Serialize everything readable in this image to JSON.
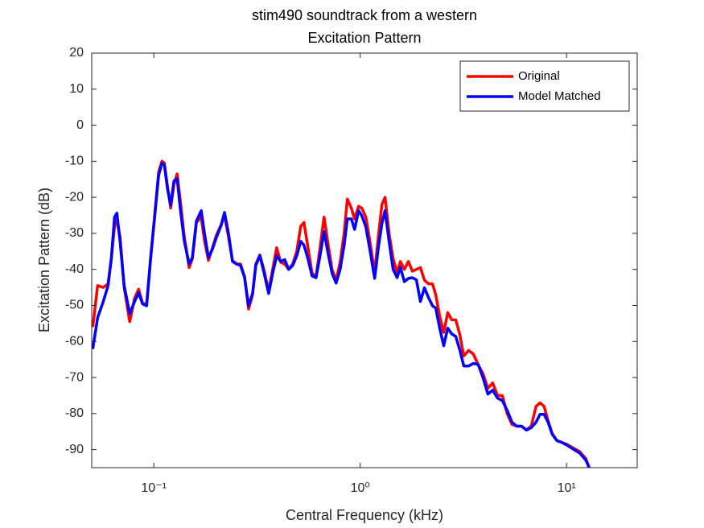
{
  "chart_data": {
    "type": "line",
    "title": [
      "stim490 soundtrack from a western",
      "Excitation Pattern"
    ],
    "x_label": "Central Frequency (kHz)",
    "y_label": "Excitation Pattern (dB)",
    "x_scale": "log",
    "xlim": [
      0.05,
      22
    ],
    "xticks": [
      {
        "value": 0.1,
        "label": "10⁻¹"
      },
      {
        "value": 1,
        "label": "10⁰"
      },
      {
        "value": 10,
        "label": "10¹"
      }
    ],
    "ylim": [
      -95,
      20
    ],
    "yticks": [
      -90,
      -80,
      -70,
      -60,
      -50,
      -40,
      -30,
      -20,
      -10,
      0,
      10,
      20
    ],
    "grid": false,
    "legend": "upper right",
    "x": [
      0.0506,
      0.0534,
      0.0569,
      0.06,
      0.0622,
      0.0645,
      0.0662,
      0.0686,
      0.0718,
      0.0764,
      0.0807,
      0.0844,
      0.0882,
      0.0923,
      0.0965,
      0.1009,
      0.1055,
      0.1094,
      0.1124,
      0.1165,
      0.1207,
      0.1251,
      0.1297,
      0.1344,
      0.1405,
      0.1483,
      0.1537,
      0.1608,
      0.1697,
      0.1759,
      0.1839,
      0.1923,
      0.2011,
      0.2122,
      0.22,
      0.23,
      0.2405,
      0.2516,
      0.2631,
      0.2751,
      0.2877,
      0.3009,
      0.312,
      0.3263,
      0.3412,
      0.3601,
      0.3765,
      0.3938,
      0.4118,
      0.4306,
      0.4503,
      0.471,
      0.4927,
      0.5152,
      0.5341,
      0.5585,
      0.5841,
      0.6109,
      0.6389,
      0.6681,
      0.6988,
      0.7307,
      0.7643,
      0.7993,
      0.8359,
      0.8663,
      0.9062,
      0.9393,
      0.982,
      1.018,
      1.065,
      1.113,
      1.175,
      1.229,
      1.274,
      1.32,
      1.38,
      1.444,
      1.51,
      1.565,
      1.637,
      1.712,
      1.79,
      1.872,
      1.958,
      2.048,
      2.142,
      2.24,
      2.322,
      2.428,
      2.539,
      2.656,
      2.777,
      2.904,
      3.037,
      3.176,
      3.352,
      3.537,
      3.733,
      3.939,
      4.157,
      4.385,
      4.628,
      4.884,
      5.153,
      5.438,
      5.738,
      6.055,
      6.389,
      6.743,
      7.114,
      7.44,
      7.783,
      8.138,
      8.511,
      8.98,
      9.478,
      10.0,
      10.74,
      11.54,
      12.4,
      12.86
    ],
    "series": [
      {
        "name": "Original",
        "color": "#ff0000",
        "values": [
          -56,
          -44.5,
          -45,
          -44,
          -37,
          -28,
          -26.5,
          -31,
          -45,
          -54.5,
          -48,
          -45.5,
          -49.5,
          -49.5,
          -37,
          -25,
          -13,
          -10,
          -10.5,
          -17,
          -23,
          -16.5,
          -13.5,
          -21,
          -31,
          -39.5,
          -37,
          -27,
          -25.5,
          -32,
          -37.5,
          -34,
          -30.5,
          -27.5,
          -25,
          -31,
          -37.5,
          -38.5,
          -38.5,
          -42,
          -51,
          -47,
          -38.5,
          -36,
          -40,
          -46,
          -40,
          -34,
          -38,
          -38.5,
          -40,
          -38.5,
          -35,
          -28,
          -27,
          -34,
          -41,
          -42,
          -34,
          -25.5,
          -33,
          -40,
          -43,
          -38,
          -30,
          -20.5,
          -23,
          -26,
          -22.5,
          -23,
          -25.5,
          -32,
          -41,
          -30,
          -22,
          -20,
          -30,
          -37,
          -41,
          -37.8,
          -40,
          -37.8,
          -40.5,
          -40,
          -39.5,
          -43,
          -44,
          -44,
          -47,
          -53,
          -57.5,
          -52,
          -54,
          -54,
          -58,
          -64,
          -62.5,
          -63.5,
          -66.5,
          -69,
          -73,
          -71.5,
          -75,
          -75,
          -80,
          -83,
          -83.5,
          -83.5,
          -84.5,
          -83.5,
          -78,
          -77,
          -78,
          -82,
          -85.5,
          -87.5,
          -88,
          -88.5,
          -89.5,
          -90.5,
          -92.5,
          -95
        ]
      },
      {
        "name": "Model Matched",
        "color": "#0000ff",
        "values": [
          -62.1,
          -53.4,
          -48.9,
          -44.5,
          -37.1,
          -25.5,
          -24.4,
          -32.2,
          -44.5,
          -52.3,
          -48.9,
          -46.5,
          -49.6,
          -50.1,
          -36.7,
          -25.5,
          -13.9,
          -10.6,
          -11,
          -17.7,
          -22.2,
          -15.5,
          -14.8,
          -23.3,
          -32.2,
          -38.5,
          -36.7,
          -26.6,
          -23.7,
          -30,
          -36.7,
          -34.4,
          -31.1,
          -27.7,
          -24.2,
          -30,
          -37.8,
          -38.5,
          -38.9,
          -42.2,
          -50.1,
          -46.7,
          -38.9,
          -36.2,
          -40.7,
          -46.7,
          -41.1,
          -36.2,
          -37.8,
          -37.3,
          -40,
          -38.9,
          -36.2,
          -32.2,
          -33.3,
          -37.1,
          -41.8,
          -42.3,
          -36.2,
          -29.5,
          -35.6,
          -41.1,
          -43.8,
          -40,
          -33.3,
          -26,
          -26,
          -28.9,
          -23.7,
          -25.1,
          -28.2,
          -34.4,
          -42.5,
          -33.3,
          -27.3,
          -23.7,
          -32.2,
          -40,
          -42.3,
          -39.4,
          -43.4,
          -42.5,
          -42.3,
          -42.9,
          -48.9,
          -45.1,
          -47.8,
          -50.1,
          -50.7,
          -56.3,
          -61.2,
          -56.3,
          -57.9,
          -58.6,
          -62.3,
          -66.8,
          -66.8,
          -66.1,
          -66.4,
          -70.1,
          -74.6,
          -73.5,
          -75.7,
          -76.4,
          -79.1,
          -82.4,
          -83.5,
          -83.5,
          -84.6,
          -83.9,
          -82.4,
          -80.2,
          -80.2,
          -82.4,
          -85.7,
          -87.5,
          -88,
          -88.7,
          -89.8,
          -90.9,
          -92.9,
          -95
        ]
      }
    ]
  }
}
